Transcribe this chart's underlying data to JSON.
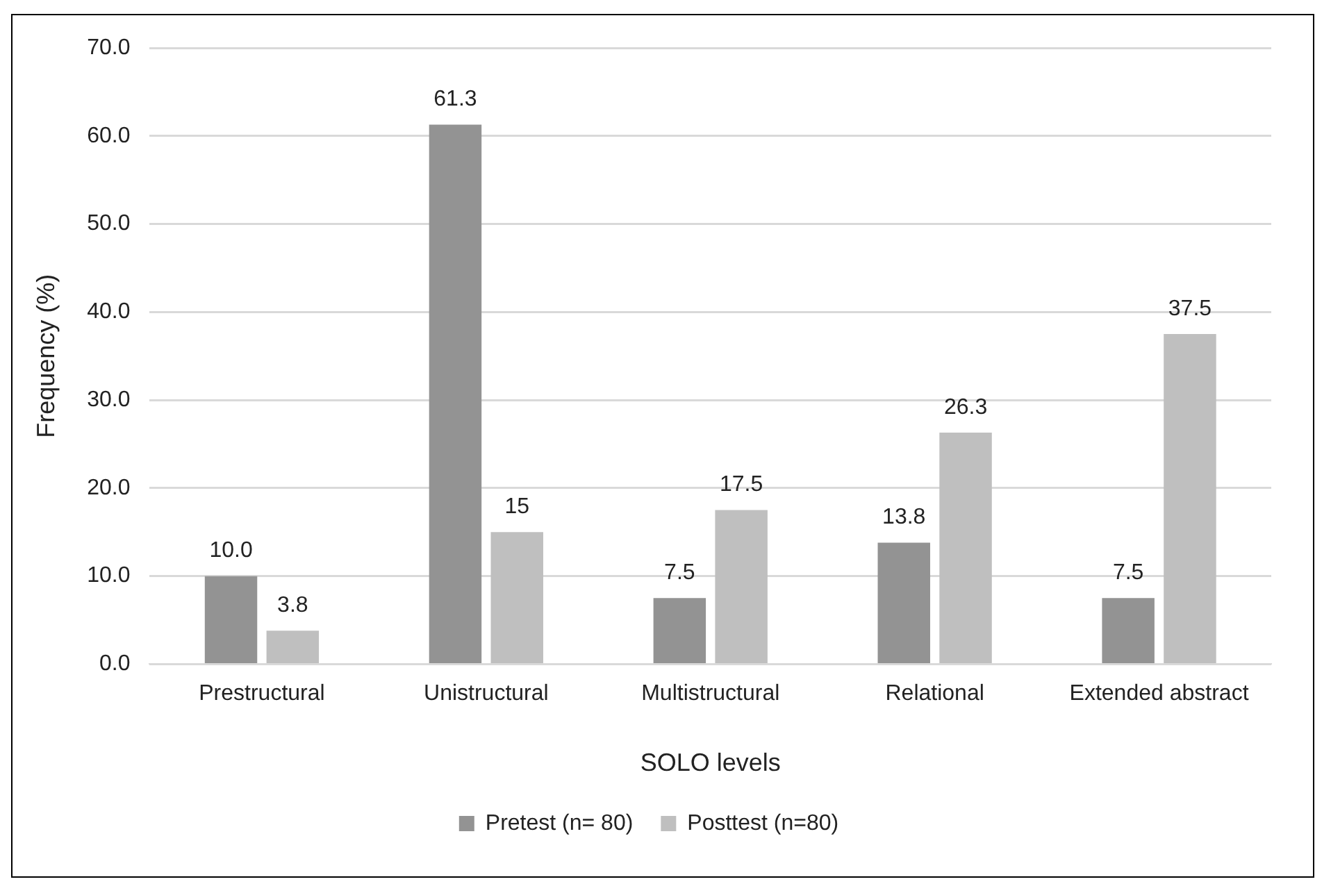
{
  "chart_data": {
    "type": "bar",
    "xlabel": "SOLO levels",
    "ylabel": "Frequency (%)",
    "categories": [
      "Prestructural",
      "Unistructural",
      "Multistructural",
      "Relational",
      "Extended abstract"
    ],
    "series": [
      {
        "name": "Pretest (n= 80)",
        "color": "#939393",
        "values": [
          10.0,
          61.3,
          7.5,
          13.8,
          7.5
        ],
        "value_labels": [
          "10.0",
          "61.3",
          "7.5",
          "13.8",
          "7.5"
        ]
      },
      {
        "name": "Posttest (n=80)",
        "color": "#bfbfbf",
        "values": [
          3.8,
          15,
          17.5,
          26.3,
          37.5
        ],
        "value_labels": [
          "3.8",
          "15",
          "17.5",
          "26.3",
          "37.5"
        ]
      }
    ],
    "ylim": [
      0,
      70
    ],
    "yticks": [
      {
        "value": 0,
        "label": "0.0"
      },
      {
        "value": 10,
        "label": "10.0"
      },
      {
        "value": 20,
        "label": "20.0"
      },
      {
        "value": 30,
        "label": "30.0"
      },
      {
        "value": 40,
        "label": "40.0"
      },
      {
        "value": 50,
        "label": "50.0"
      },
      {
        "value": 60,
        "label": "60.0"
      },
      {
        "value": 70,
        "label": "70.0"
      }
    ],
    "grid": "y",
    "legend": "bottom"
  }
}
